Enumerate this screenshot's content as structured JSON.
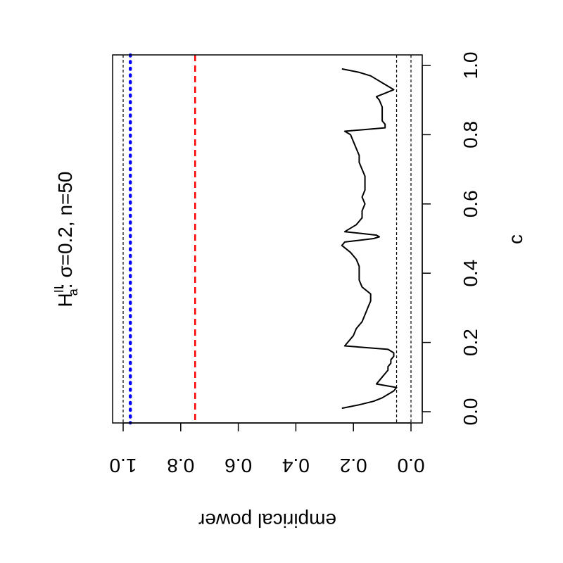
{
  "chart_data": {
    "type": "line",
    "title_main": "H",
    "title_sup": "II",
    "title_sub": "a",
    "title_rest": ": σ=0.2, n=50",
    "xlabel": "c",
    "ylabel": "empirical power",
    "xlim": [
      0,
      1
    ],
    "ylim": [
      0,
      1
    ],
    "x_ticks": [
      "0.0",
      "0.2",
      "0.4",
      "0.6",
      "0.8",
      "1.0"
    ],
    "y_ticks": [
      "0.0",
      "0.2",
      "0.4",
      "0.6",
      "0.8",
      "1.0"
    ],
    "orientation": "rotated 90° clockwise (x axis vertical, y axis horizontal mirrored)",
    "reference_lines": [
      {
        "y": 0.0,
        "style": "dashed",
        "color": "#000000"
      },
      {
        "y": 0.05,
        "style": "dashed",
        "color": "#000000"
      },
      {
        "y": 1.0,
        "style": "dashed",
        "color": "#000000"
      },
      {
        "y": 0.975,
        "style": "dotted",
        "color": "#0000ff"
      },
      {
        "y": 0.75,
        "style": "dashed",
        "color": "#ff0000"
      }
    ],
    "series": [
      {
        "color": "#000000",
        "x": [
          0.01,
          0.02,
          0.03,
          0.04,
          0.05,
          0.06,
          0.07,
          0.08,
          0.09,
          0.1,
          0.11,
          0.12,
          0.13,
          0.14,
          0.15,
          0.16,
          0.17,
          0.18,
          0.19,
          0.2,
          0.22,
          0.24,
          0.26,
          0.28,
          0.3,
          0.32,
          0.34,
          0.36,
          0.38,
          0.4,
          0.42,
          0.44,
          0.46,
          0.48,
          0.49,
          0.5,
          0.505,
          0.51,
          0.52,
          0.54,
          0.56,
          0.58,
          0.6,
          0.62,
          0.64,
          0.66,
          0.68,
          0.7,
          0.72,
          0.74,
          0.76,
          0.78,
          0.8,
          0.81,
          0.82,
          0.83,
          0.84,
          0.86,
          0.88,
          0.9,
          0.91,
          0.92,
          0.93,
          0.94,
          0.95,
          0.96,
          0.97,
          0.98,
          0.99
        ],
        "y": [
          0.24,
          0.18,
          0.13,
          0.1,
          0.08,
          0.06,
          0.05,
          0.12,
          0.11,
          0.1,
          0.09,
          0.08,
          0.08,
          0.07,
          0.07,
          0.06,
          0.06,
          0.08,
          0.23,
          0.22,
          0.2,
          0.19,
          0.17,
          0.16,
          0.15,
          0.14,
          0.14,
          0.17,
          0.18,
          0.18,
          0.18,
          0.19,
          0.21,
          0.24,
          0.23,
          0.13,
          0.11,
          0.12,
          0.23,
          0.19,
          0.17,
          0.17,
          0.16,
          0.17,
          0.16,
          0.16,
          0.16,
          0.17,
          0.18,
          0.18,
          0.19,
          0.2,
          0.21,
          0.23,
          0.09,
          0.09,
          0.1,
          0.1,
          0.1,
          0.11,
          0.12,
          0.09,
          0.06,
          0.08,
          0.1,
          0.12,
          0.14,
          0.18,
          0.24
        ]
      }
    ]
  }
}
